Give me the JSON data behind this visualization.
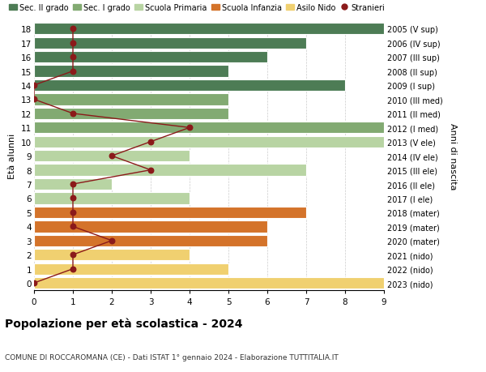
{
  "ages": [
    18,
    17,
    16,
    15,
    14,
    13,
    12,
    11,
    10,
    9,
    8,
    7,
    6,
    5,
    4,
    3,
    2,
    1,
    0
  ],
  "years": [
    "2005 (V sup)",
    "2006 (IV sup)",
    "2007 (III sup)",
    "2008 (II sup)",
    "2009 (I sup)",
    "2010 (III med)",
    "2011 (II med)",
    "2012 (I med)",
    "2013 (V ele)",
    "2014 (IV ele)",
    "2015 (III ele)",
    "2016 (II ele)",
    "2017 (I ele)",
    "2018 (mater)",
    "2019 (mater)",
    "2020 (mater)",
    "2021 (nido)",
    "2022 (nido)",
    "2023 (nido)"
  ],
  "bar_values": [
    9,
    7,
    6,
    5,
    8,
    5,
    5,
    9,
    9,
    4,
    7,
    2,
    4,
    7,
    6,
    6,
    4,
    5,
    9
  ],
  "stranieri_values": [
    1,
    1,
    1,
    1,
    0,
    0,
    1,
    4,
    3,
    2,
    3,
    1,
    1,
    1,
    1,
    2,
    1,
    1,
    0
  ],
  "bar_colors": [
    "#4d7c55",
    "#4d7c55",
    "#4d7c55",
    "#4d7c55",
    "#4d7c55",
    "#82aa72",
    "#82aa72",
    "#82aa72",
    "#b8d4a3",
    "#b8d4a3",
    "#b8d4a3",
    "#b8d4a3",
    "#b8d4a3",
    "#d4732a",
    "#d4732a",
    "#d4732a",
    "#f0d070",
    "#f0d070",
    "#f0d070"
  ],
  "color_sec2": "#4d7c55",
  "color_sec1": "#82aa72",
  "color_prim": "#b8d4a3",
  "color_infanzia": "#d4732a",
  "color_nido": "#f0d070",
  "color_stranieri": "#8b1a1a",
  "title": "Popolazione per età scolastica - 2024",
  "subtitle": "COMUNE DI ROCCAROMANA (CE) - Dati ISTAT 1° gennaio 2024 - Elaborazione TUTTITALIA.IT",
  "ylabel_left": "Età alunni",
  "ylabel_right": "Anni di nascita",
  "xlim": [
    0,
    9
  ],
  "ylim": [
    -0.5,
    18.5
  ],
  "legend_labels": [
    "Sec. II grado",
    "Sec. I grado",
    "Scuola Primaria",
    "Scuola Infanzia",
    "Asilo Nido",
    "Stranieri"
  ],
  "bar_height": 0.82,
  "grid_color": "#cccccc",
  "background_color": "#ffffff"
}
